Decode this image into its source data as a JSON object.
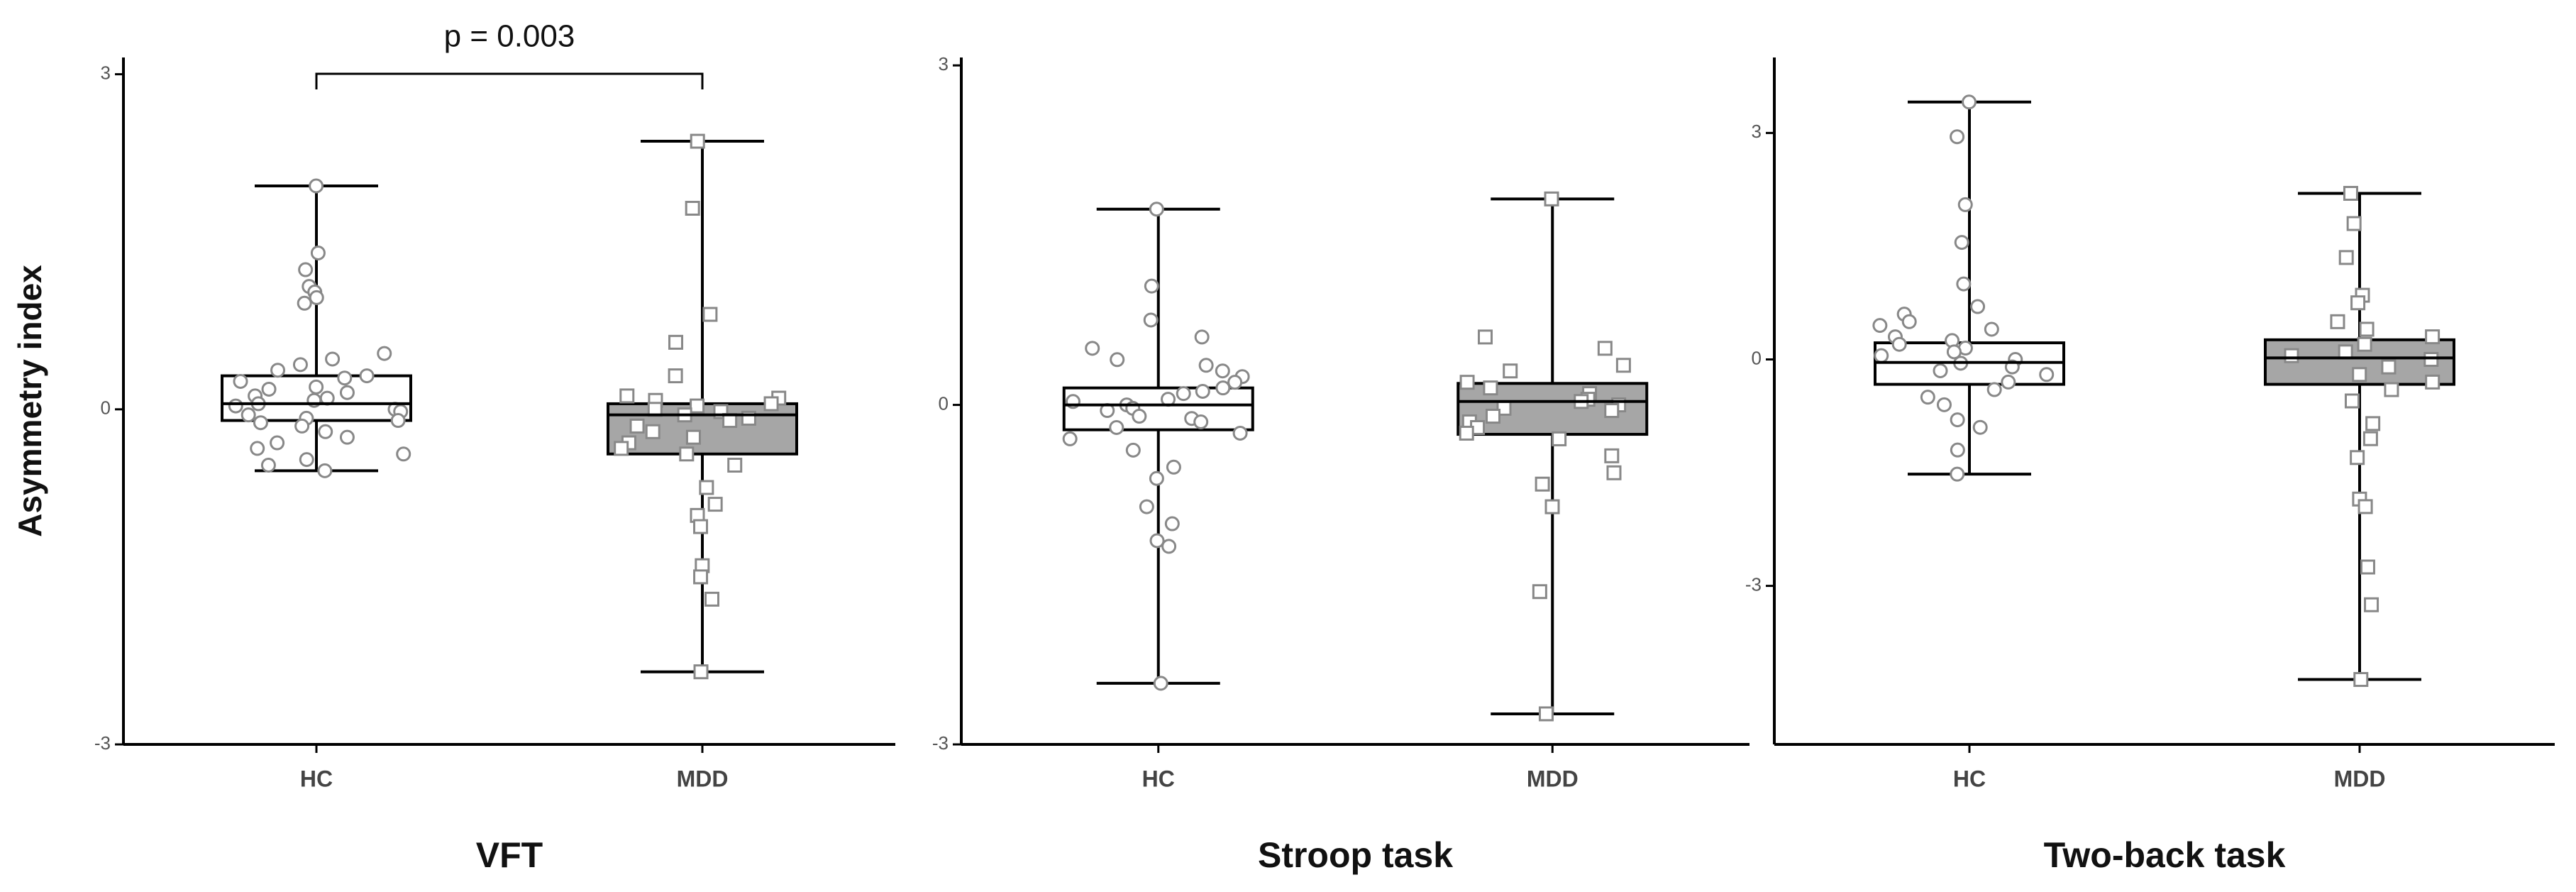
{
  "chart_data": [
    {
      "type": "box",
      "xlabel": "VFT",
      "ylabel": "Asymmetry index",
      "annotation": "p = 0.003",
      "categories": [
        "HC",
        "MDD"
      ],
      "box_colors": [
        "#ffffff",
        "#a6a6a6"
      ],
      "markers": [
        "circle",
        "square"
      ],
      "ylim": [
        -3,
        3.15
      ],
      "yticks": [
        -3,
        0,
        3
      ],
      "boxes": [
        {
          "min": -0.55,
          "q1": -0.1,
          "median": 0.05,
          "q3": 0.3,
          "max": 2.0
        },
        {
          "min": -2.35,
          "q1": -0.4,
          "median": -0.05,
          "q3": 0.05,
          "max": 2.4
        }
      ],
      "points": [
        [
          2.0,
          1.4,
          1.25,
          1.1,
          1.05,
          1.0,
          0.95,
          0.5,
          0.45,
          0.4,
          0.35,
          0.3,
          0.28,
          0.25,
          0.2,
          0.18,
          0.15,
          0.12,
          0.1,
          0.08,
          0.05,
          0.03,
          0.0,
          -0.02,
          -0.05,
          -0.08,
          -0.1,
          -0.12,
          -0.15,
          -0.2,
          -0.25,
          -0.3,
          -0.35,
          -0.4,
          -0.45,
          -0.5,
          -0.55
        ],
        [
          2.4,
          1.8,
          0.85,
          0.6,
          0.3,
          0.12,
          0.1,
          0.08,
          0.05,
          0.03,
          0.0,
          -0.02,
          -0.05,
          -0.08,
          -0.1,
          -0.15,
          -0.2,
          -0.25,
          -0.3,
          -0.35,
          -0.4,
          -0.5,
          -0.7,
          -0.85,
          -0.95,
          -1.05,
          -1.4,
          -1.5,
          -1.7,
          -2.35
        ]
      ]
    },
    {
      "type": "box",
      "xlabel": "Stroop task",
      "categories": [
        "HC",
        "MDD"
      ],
      "box_colors": [
        "#ffffff",
        "#a6a6a6"
      ],
      "markers": [
        "circle",
        "square"
      ],
      "ylim": [
        -3,
        3.07
      ],
      "yticks": [
        -3,
        0,
        3
      ],
      "boxes": [
        {
          "min": -2.46,
          "q1": -0.22,
          "median": 0.0,
          "q3": 0.15,
          "max": 1.73
        },
        {
          "min": -2.73,
          "q1": -0.26,
          "median": 0.03,
          "q3": 0.19,
          "max": 1.82
        }
      ],
      "points": [
        [
          1.73,
          1.05,
          0.75,
          0.6,
          0.5,
          0.4,
          0.35,
          0.3,
          0.25,
          0.2,
          0.15,
          0.12,
          0.1,
          0.05,
          0.03,
          0.0,
          -0.03,
          -0.05,
          -0.1,
          -0.12,
          -0.15,
          -0.2,
          -0.25,
          -0.3,
          -0.4,
          -0.55,
          -0.65,
          -0.9,
          -1.05,
          -1.2,
          -1.25,
          -2.46
        ],
        [
          1.82,
          0.6,
          0.5,
          0.35,
          0.3,
          0.2,
          0.15,
          0.1,
          0.05,
          0.03,
          0.0,
          -0.03,
          -0.05,
          -0.1,
          -0.15,
          -0.2,
          -0.25,
          -0.3,
          -0.45,
          -0.6,
          -0.7,
          -0.9,
          -1.65,
          -2.73
        ]
      ]
    },
    {
      "type": "box",
      "xlabel": "Two-back task",
      "categories": [
        "HC",
        "MDD"
      ],
      "box_colors": [
        "#ffffff",
        "#a6a6a6"
      ],
      "markers": [
        "circle",
        "square"
      ],
      "ylim": [
        -5.1,
        4
      ],
      "yticks": [
        -3,
        0,
        3
      ],
      "boxes": [
        {
          "min": -1.52,
          "q1": -0.33,
          "median": -0.04,
          "q3": 0.22,
          "max": 3.41
        },
        {
          "min": -4.24,
          "q1": -0.33,
          "median": 0.02,
          "q3": 0.26,
          "max": 2.2
        }
      ],
      "points": [
        [
          3.41,
          2.95,
          2.05,
          1.55,
          1.0,
          0.7,
          0.6,
          0.5,
          0.45,
          0.4,
          0.3,
          0.25,
          0.2,
          0.15,
          0.1,
          0.05,
          0.0,
          -0.05,
          -0.1,
          -0.15,
          -0.2,
          -0.3,
          -0.4,
          -0.5,
          -0.6,
          -0.8,
          -0.9,
          -1.2,
          -1.52
        ],
        [
          2.2,
          1.8,
          1.35,
          0.85,
          0.75,
          0.5,
          0.4,
          0.3,
          0.2,
          0.1,
          0.05,
          0.0,
          -0.1,
          -0.2,
          -0.3,
          -0.4,
          -0.55,
          -0.85,
          -1.05,
          -1.3,
          -1.85,
          -1.95,
          -2.75,
          -3.25,
          -4.24
        ]
      ]
    }
  ]
}
